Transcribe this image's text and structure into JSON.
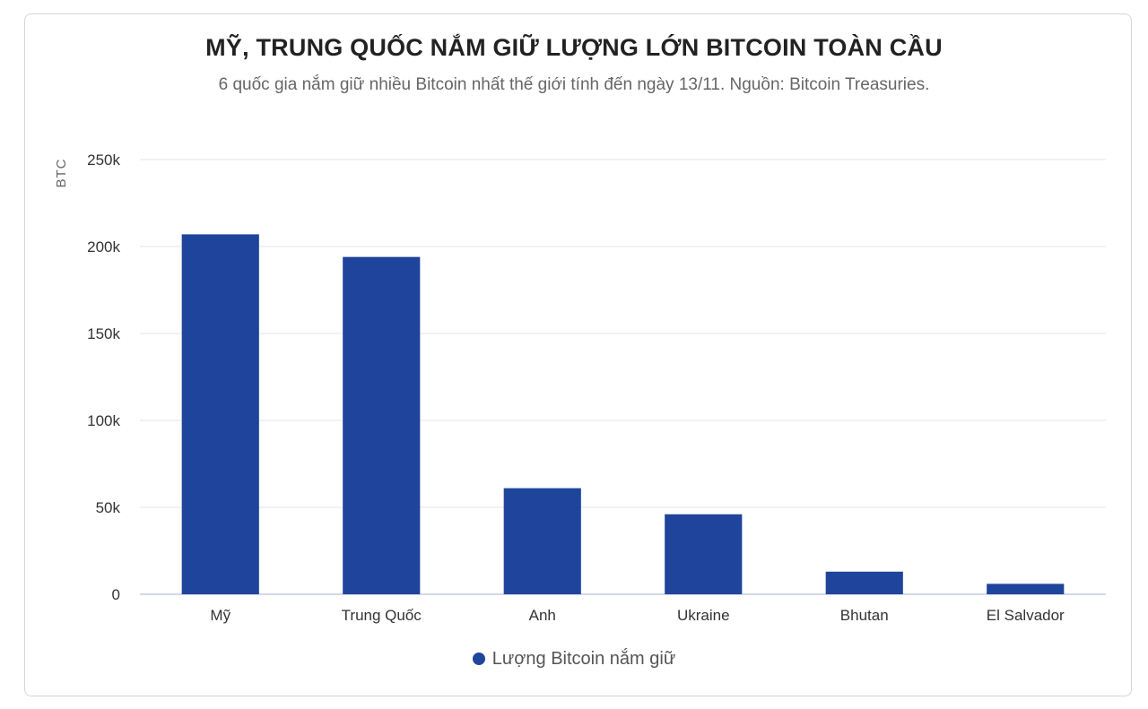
{
  "chart_data": {
    "type": "bar",
    "title": "MỸ, TRUNG QUỐC NẮM GIỮ LƯỢNG LỚN BITCOIN TOÀN CẦU",
    "subtitle": "6 quốc gia nắm giữ nhiều Bitcoin nhất thế giới tính đến ngày 13/11. Nguồn: Bitcoin Treasuries.",
    "ylabel": "BTC",
    "xlabel": "",
    "ylim": [
      0,
      250000
    ],
    "yticks": [
      0,
      50000,
      100000,
      150000,
      200000,
      250000
    ],
    "ytick_labels": [
      "0",
      "50k",
      "100k",
      "150k",
      "200k",
      "250k"
    ],
    "categories": [
      "Mỹ",
      "Trung Quốc",
      "Anh",
      "Ukraine",
      "Bhutan",
      "El Salvador"
    ],
    "series": [
      {
        "name": "Lượng Bitcoin nắm giữ",
        "color": "#1f449c",
        "values": [
          207000,
          194000,
          61000,
          46000,
          13000,
          6000
        ]
      }
    ],
    "grid": true,
    "legend_position": "bottom"
  }
}
